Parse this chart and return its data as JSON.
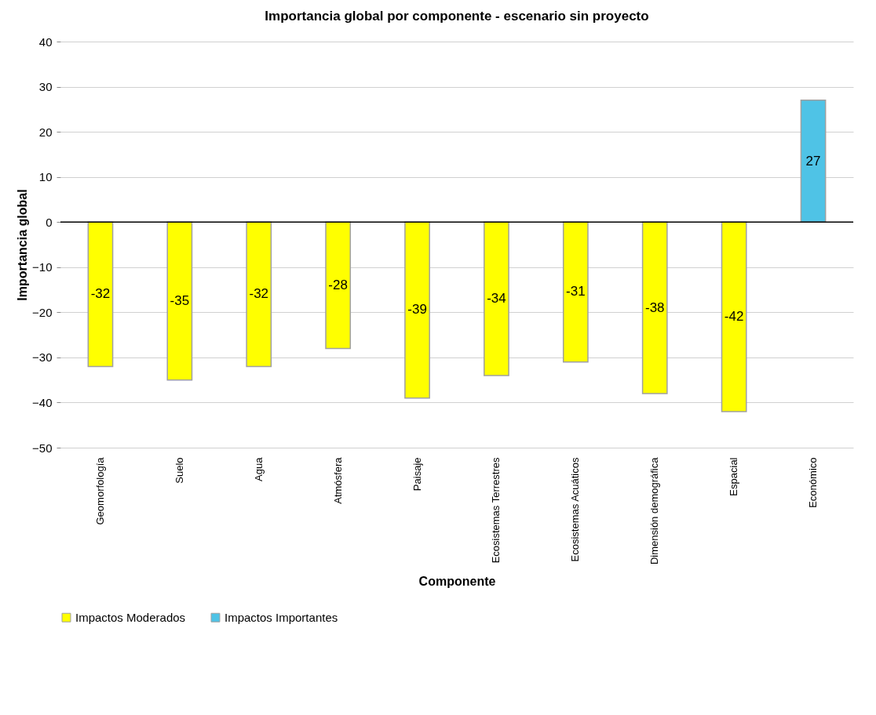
{
  "chart_data": {
    "type": "bar",
    "title": "Importancia global por componente - escenario sin proyecto",
    "xlabel": "Componente",
    "ylabel": "Importancia global",
    "categories": [
      "Geomorfología",
      "Suelo",
      "Agua",
      "Atmósfera",
      "Paisaje",
      "Ecosistemas Terrestres",
      "Ecosistemas Acuáticos",
      "Dimensión demográfica",
      "Espacial",
      "Económico"
    ],
    "series": [
      {
        "name": "Impactos Moderados",
        "color": "#ffff00",
        "values": [
          -32,
          -35,
          -32,
          -28,
          -39,
          -34,
          -31,
          -38,
          -42,
          null
        ]
      },
      {
        "name": "Impactos Importantes",
        "color": "#4fc3e6",
        "values": [
          null,
          null,
          null,
          null,
          null,
          null,
          null,
          null,
          null,
          27
        ]
      }
    ],
    "ylim": [
      -50,
      40
    ],
    "yticks": [
      -50,
      -40,
      -30,
      -20,
      -10,
      0,
      10,
      20,
      30,
      40
    ],
    "grid": "y",
    "legend": "bottom",
    "data_labels": true
  }
}
